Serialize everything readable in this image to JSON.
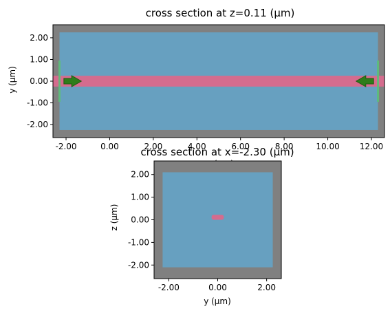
{
  "figure": {
    "background": "#ffffff",
    "colors": {
      "pml": "#808080",
      "background_medium": "#67a0c0",
      "waveguide": "#d46c8e",
      "monitor": "#5cbf78",
      "source_arrow": "#2e7d1a",
      "outline": "#000000"
    }
  },
  "chart_data": [
    {
      "type": "diagram",
      "title": "cross section at z=0.11 (μm)",
      "xlabel": "x (μm)",
      "ylabel": "y (μm)",
      "xlim": [
        -2.6,
        12.6
      ],
      "ylim": [
        -2.6,
        2.6
      ],
      "xticks": [
        -2.0,
        0.0,
        2.0,
        4.0,
        6.0,
        8.0,
        10.0,
        12.0
      ],
      "xtick_labels": [
        "-2.00",
        "0.00",
        "2.00",
        "4.00",
        "6.00",
        "8.00",
        "10.00",
        "12.00"
      ],
      "yticks": [
        2.0,
        1.0,
        0.0,
        -1.0,
        -2.0
      ],
      "ytick_labels": [
        "2.00",
        "1.00",
        "0.00",
        "-1.00",
        "-2.00"
      ],
      "domain": {
        "x": [
          -2.6,
          12.6
        ],
        "y": [
          -2.6,
          2.6
        ]
      },
      "inner_region": {
        "x": [
          -2.3,
          12.3
        ],
        "y": [
          -2.25,
          2.25
        ]
      },
      "waveguide": {
        "x": [
          -2.6,
          12.6
        ],
        "y": [
          -0.25,
          0.25
        ]
      },
      "monitors": [
        {
          "x": -2.3,
          "y": [
            -0.95,
            0.95
          ]
        },
        {
          "x": 12.3,
          "y": [
            -0.95,
            0.95
          ]
        }
      ],
      "sources": [
        {
          "x_from": -2.1,
          "x_to": -1.3,
          "y": 0.0
        },
        {
          "x_from": 12.1,
          "x_to": 11.3,
          "y": 0.0
        }
      ]
    },
    {
      "type": "diagram",
      "title": "cross section at x=-2.30 (μm)",
      "xlabel": "y (μm)",
      "ylabel": "z (μm)",
      "xlim": [
        -2.6,
        2.6
      ],
      "ylim": [
        -2.6,
        2.6
      ],
      "xticks": [
        -2.0,
        0.0,
        2.0
      ],
      "xtick_labels": [
        "-2.00",
        "0.00",
        "2.00"
      ],
      "yticks": [
        2.0,
        1.0,
        0.0,
        -1.0,
        -2.0
      ],
      "ytick_labels": [
        "2.00",
        "1.00",
        "0.00",
        "-1.00",
        "-2.00"
      ],
      "domain": {
        "x": [
          -2.6,
          2.6
        ],
        "y": [
          -2.6,
          2.6
        ]
      },
      "inner_region": {
        "x": [
          -2.25,
          2.25
        ],
        "y": [
          -2.1,
          2.1
        ]
      },
      "waveguide": {
        "x": [
          -0.25,
          0.25
        ],
        "y": [
          0.0,
          0.22
        ]
      }
    }
  ]
}
